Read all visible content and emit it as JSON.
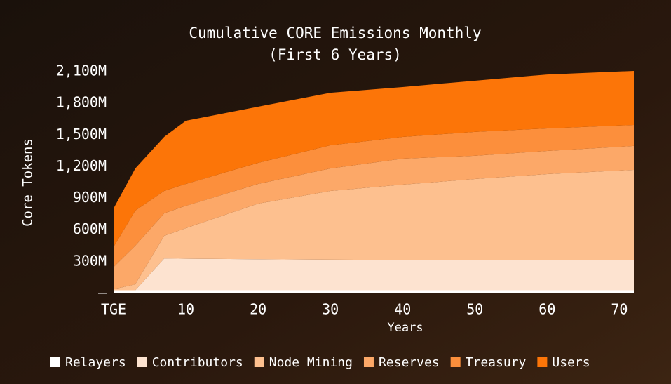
{
  "chart_data": {
    "type": "stacked-area",
    "title": "Cumulative CORE Emissions Monthly",
    "subtitle": "(First 6 Years)",
    "x_label": "Years",
    "y_label": "Core Tokens",
    "x": [
      0,
      3,
      7,
      10,
      20,
      30,
      40,
      50,
      60,
      72
    ],
    "series": [
      {
        "name": "Relayers",
        "color": "#ffffff",
        "values": [
          30,
          30,
          30,
          30,
          30,
          30,
          30,
          30,
          30,
          30
        ]
      },
      {
        "name": "Contributors",
        "color": "#fde3d0",
        "values": [
          0,
          0,
          300,
          298,
          294,
          290,
          288,
          286,
          284,
          282
        ]
      },
      {
        "name": "Node Mining",
        "color": "#fdc08f",
        "values": [
          10,
          56,
          215,
          290,
          526,
          650,
          712,
          767,
          816,
          858
        ]
      },
      {
        "name": "Reserves",
        "color": "#fca868",
        "values": [
          210,
          366,
          213,
          212,
          187,
          213,
          246,
          220,
          219,
          226
        ]
      },
      {
        "name": "Treasury",
        "color": "#fc8f3c",
        "values": [
          190,
          332,
          212,
          207,
          199,
          219,
          206,
          226,
          213,
          199
        ]
      },
      {
        "name": "Users",
        "color": "#fc7508",
        "values": [
          365,
          399,
          512,
          598,
          532,
          498,
          472,
          485,
          511,
          512
        ]
      }
    ],
    "xlim": [
      0,
      72
    ],
    "ylim": [
      0,
      2100
    ],
    "xticks": [
      {
        "value": 0,
        "label": "TGE"
      },
      10,
      20,
      30,
      40,
      50,
      60,
      70
    ],
    "yticks": [
      {
        "value": 0,
        "label": "–"
      },
      {
        "value": 300,
        "label": "300M"
      },
      {
        "value": 600,
        "label": "600M"
      },
      {
        "value": 900,
        "label": "900M"
      },
      {
        "value": 1200,
        "label": "1,200M"
      },
      {
        "value": 1500,
        "label": "1,500M"
      },
      {
        "value": 1800,
        "label": "1,800M"
      },
      {
        "value": 2100,
        "label": "2,100M"
      }
    ],
    "grid": false,
    "legend": "bottom"
  }
}
